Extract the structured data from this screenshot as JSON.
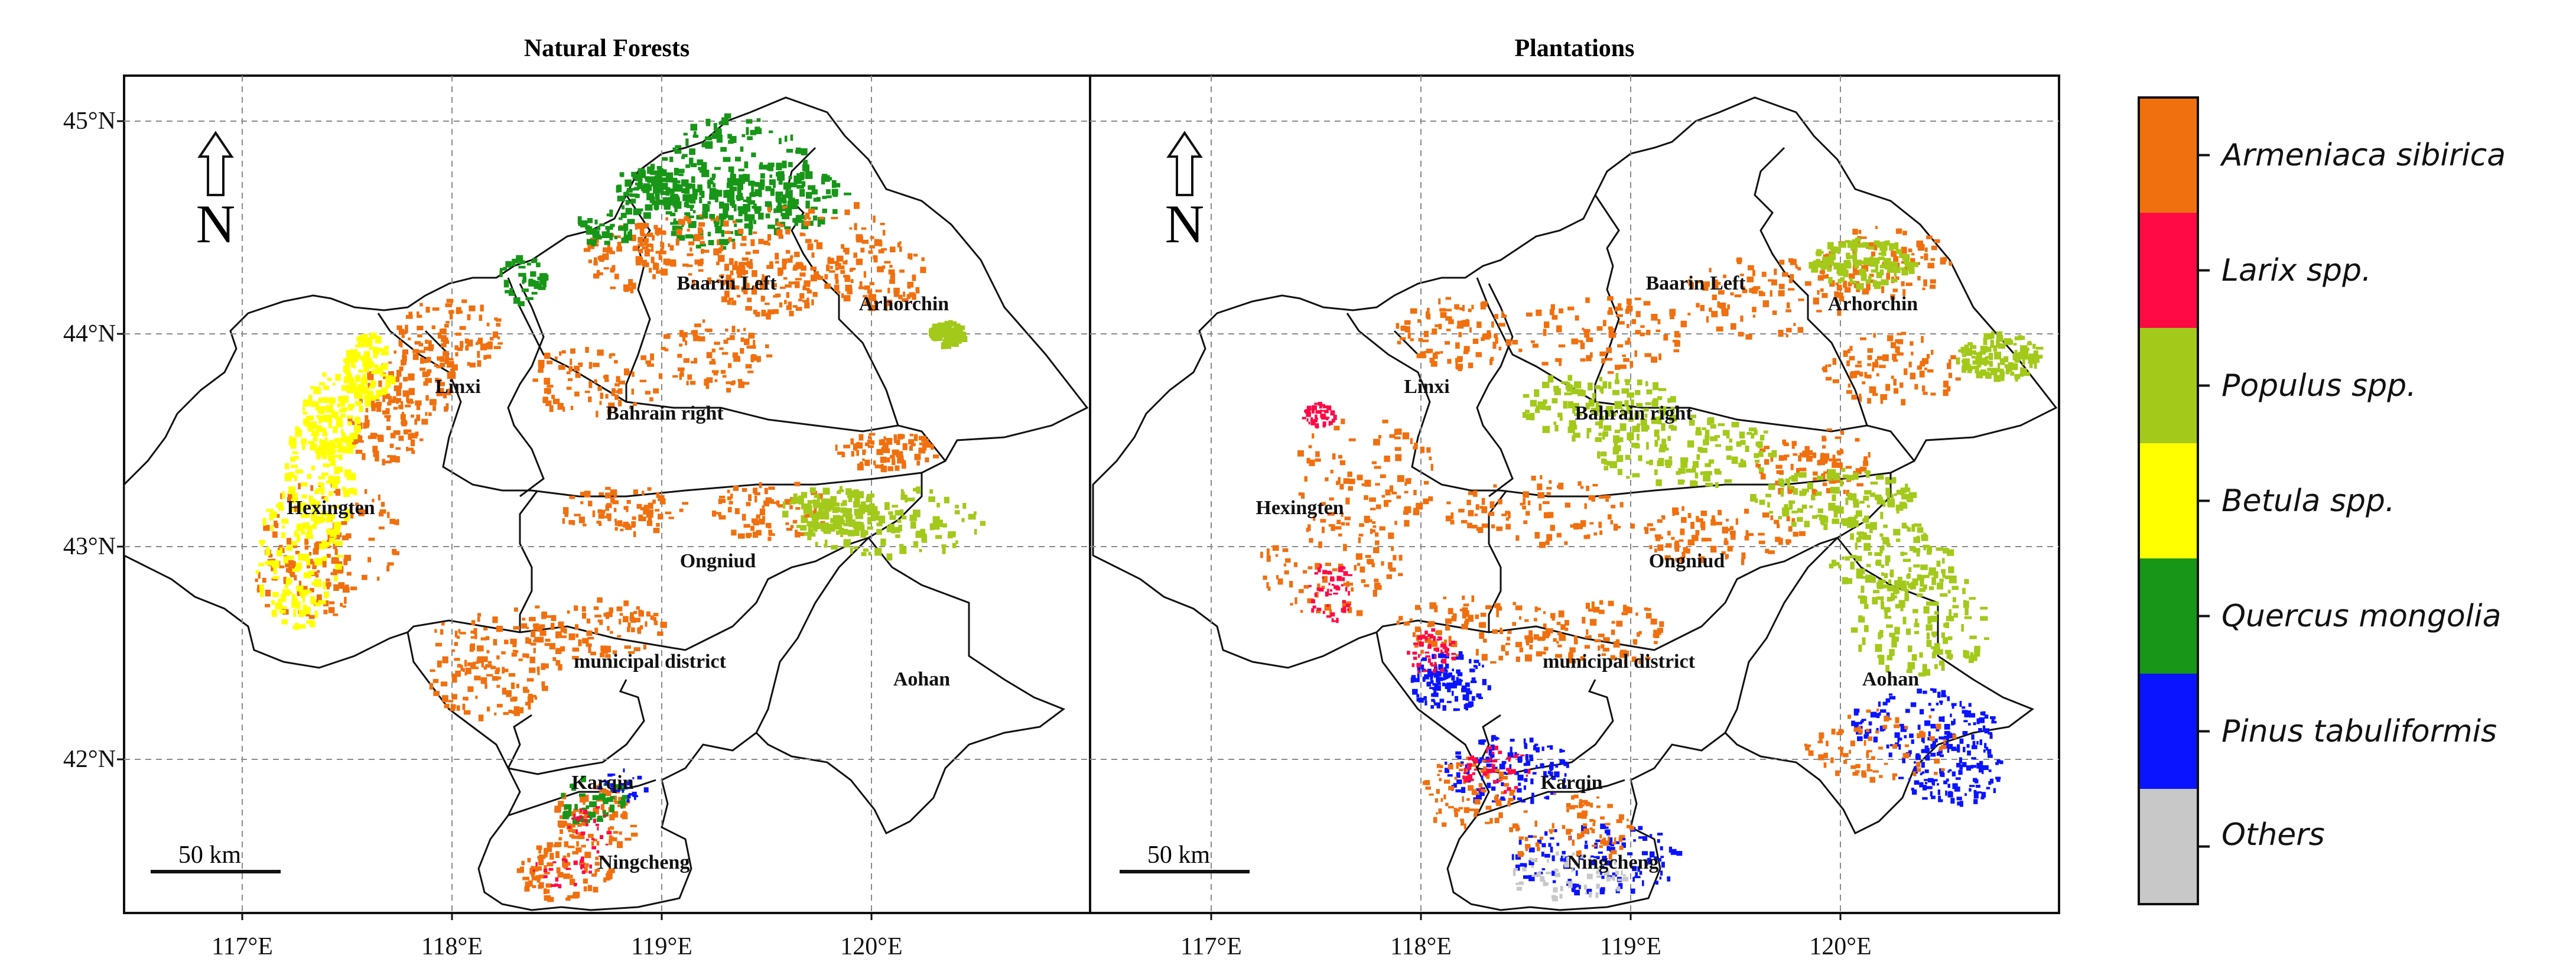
{
  "panels": [
    {
      "title": "Natural Forests",
      "scalebar": "50 km",
      "north": "N"
    },
    {
      "title": "Plantations",
      "scalebar": "50 km",
      "north": "N"
    }
  ],
  "axes": {
    "lat_labels": [
      "45°N",
      "44°N",
      "43°N",
      "42°N"
    ],
    "lon_labels": [
      "117°E",
      "118°E",
      "119°E",
      "120°E"
    ],
    "lat_values": [
      45,
      44,
      43,
      42
    ],
    "lon_values": [
      117,
      118,
      119,
      120
    ],
    "lon_range": [
      116.4,
      121.0
    ],
    "lat_range": [
      41.3,
      45.2
    ],
    "grid": true
  },
  "regions": [
    "Baarin Left",
    "Arhorchin",
    "Linxi",
    "Bahrain right",
    "Hexingten",
    "Ongniud",
    "municipal district",
    "Aohan",
    "Karqin",
    "Ningcheng"
  ],
  "legend": {
    "items": [
      {
        "label": "Armeniaca sibirica",
        "color": "#f0700f"
      },
      {
        "label": "Larix spp.",
        "color": "#ff0a45"
      },
      {
        "label": "Populus spp.",
        "color": "#a3c91a"
      },
      {
        "label": "Betula spp.",
        "color": "#ffff00"
      },
      {
        "label": "Quercus mongolia",
        "color": "#189618"
      },
      {
        "label": "Pinus tabuliformis",
        "color": "#0a14ff"
      },
      {
        "label": "Others",
        "color": "#c8c8c8"
      }
    ]
  }
}
